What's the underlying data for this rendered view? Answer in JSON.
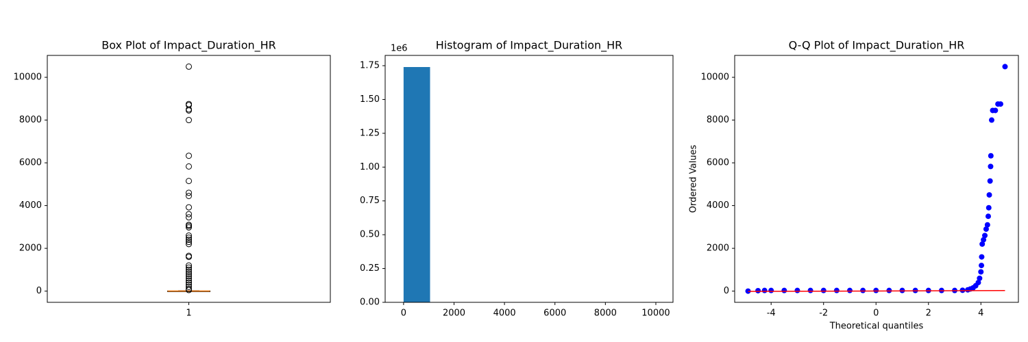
{
  "chart_data": [
    {
      "type": "box",
      "title": "Box Plot of Impact_Duration_HR",
      "categories": [
        "1"
      ],
      "ylim": [
        -525,
        11025
      ],
      "yticks": [
        0,
        2000,
        4000,
        6000,
        8000,
        10000
      ],
      "q1": 0,
      "median": 1,
      "q3": 8,
      "whislo": 0,
      "whishi": 20,
      "median_color": "#ff7f0e",
      "fliers": [
        10500,
        8750,
        8700,
        8500,
        8450,
        8000,
        6330,
        5830,
        5150,
        4600,
        4450,
        3920,
        3600,
        3450,
        3100,
        3050,
        2980,
        2600,
        2500,
        2400,
        2300,
        2200,
        1650,
        1600,
        1200,
        1100,
        1000,
        900,
        800,
        700,
        600,
        500,
        400,
        300,
        200,
        100,
        50
      ]
    },
    {
      "type": "histogram",
      "title": "Histogram of Impact_Duration_HR",
      "color": "#1f77b4",
      "bins": [
        0,
        1050,
        2100,
        3150,
        4200,
        5250,
        6300,
        7350,
        8400,
        9450,
        10500
      ],
      "counts": [
        1740000,
        60,
        20,
        15,
        10,
        3,
        2,
        0,
        6,
        1
      ],
      "xlim": [
        -730,
        10680
      ],
      "xticks": [
        0,
        2000,
        4000,
        6000,
        8000,
        10000
      ],
      "ylim": [
        0,
        1826000
      ],
      "offset_text": "1e6",
      "yticks": [
        {
          "value": 0,
          "label": "0.00"
        },
        {
          "value": 250000,
          "label": "0.25"
        },
        {
          "value": 500000,
          "label": "0.50"
        },
        {
          "value": 750000,
          "label": "0.75"
        },
        {
          "value": 1000000,
          "label": "1.00"
        },
        {
          "value": 1250000,
          "label": "1.25"
        },
        {
          "value": 1500000,
          "label": "1.50"
        },
        {
          "value": 1750000,
          "label": "1.75"
        }
      ]
    },
    {
      "type": "scatter",
      "title": "Q-Q Plot of Impact_Duration_HR",
      "xlabel": "Theoretical quantiles",
      "ylabel": "Ordered Values",
      "color": "#0000ff",
      "xlim": [
        -5.39,
        5.43
      ],
      "xticks": [
        -4,
        -2,
        0,
        2,
        4
      ],
      "ylim": [
        -525,
        11025
      ],
      "yticks": [
        0,
        2000,
        4000,
        6000,
        8000,
        10000
      ],
      "x": [
        -4.88,
        -4.5,
        -4.25,
        -4.0,
        -3.5,
        -3.0,
        -2.5,
        -2.0,
        -1.5,
        -1.0,
        -0.5,
        0,
        0.5,
        1.0,
        1.5,
        2.0,
        2.5,
        3.0,
        3.3,
        3.5,
        3.6,
        3.7,
        3.8,
        3.9,
        3.95,
        4.0,
        4.02,
        4.03,
        4.05,
        4.1,
        4.15,
        4.2,
        4.25,
        4.28,
        4.3,
        4.32,
        4.35,
        4.37,
        4.38,
        4.41,
        4.45,
        4.55,
        4.65,
        4.75,
        4.92
      ],
      "values": [
        0,
        20,
        30,
        30,
        30,
        30,
        30,
        30,
        30,
        30,
        30,
        30,
        30,
        30,
        30,
        30,
        30,
        30,
        40,
        60,
        100,
        150,
        250,
        400,
        600,
        900,
        1200,
        1600,
        2200,
        2400,
        2600,
        2900,
        3100,
        3500,
        3900,
        4500,
        5150,
        5830,
        6330,
        8000,
        8450,
        8450,
        8750,
        8750,
        10500
      ],
      "fit_line": {
        "color": "#ff0000",
        "x": [
          -4.88,
          4.92
        ],
        "values": [
          -15,
          25
        ]
      }
    }
  ]
}
